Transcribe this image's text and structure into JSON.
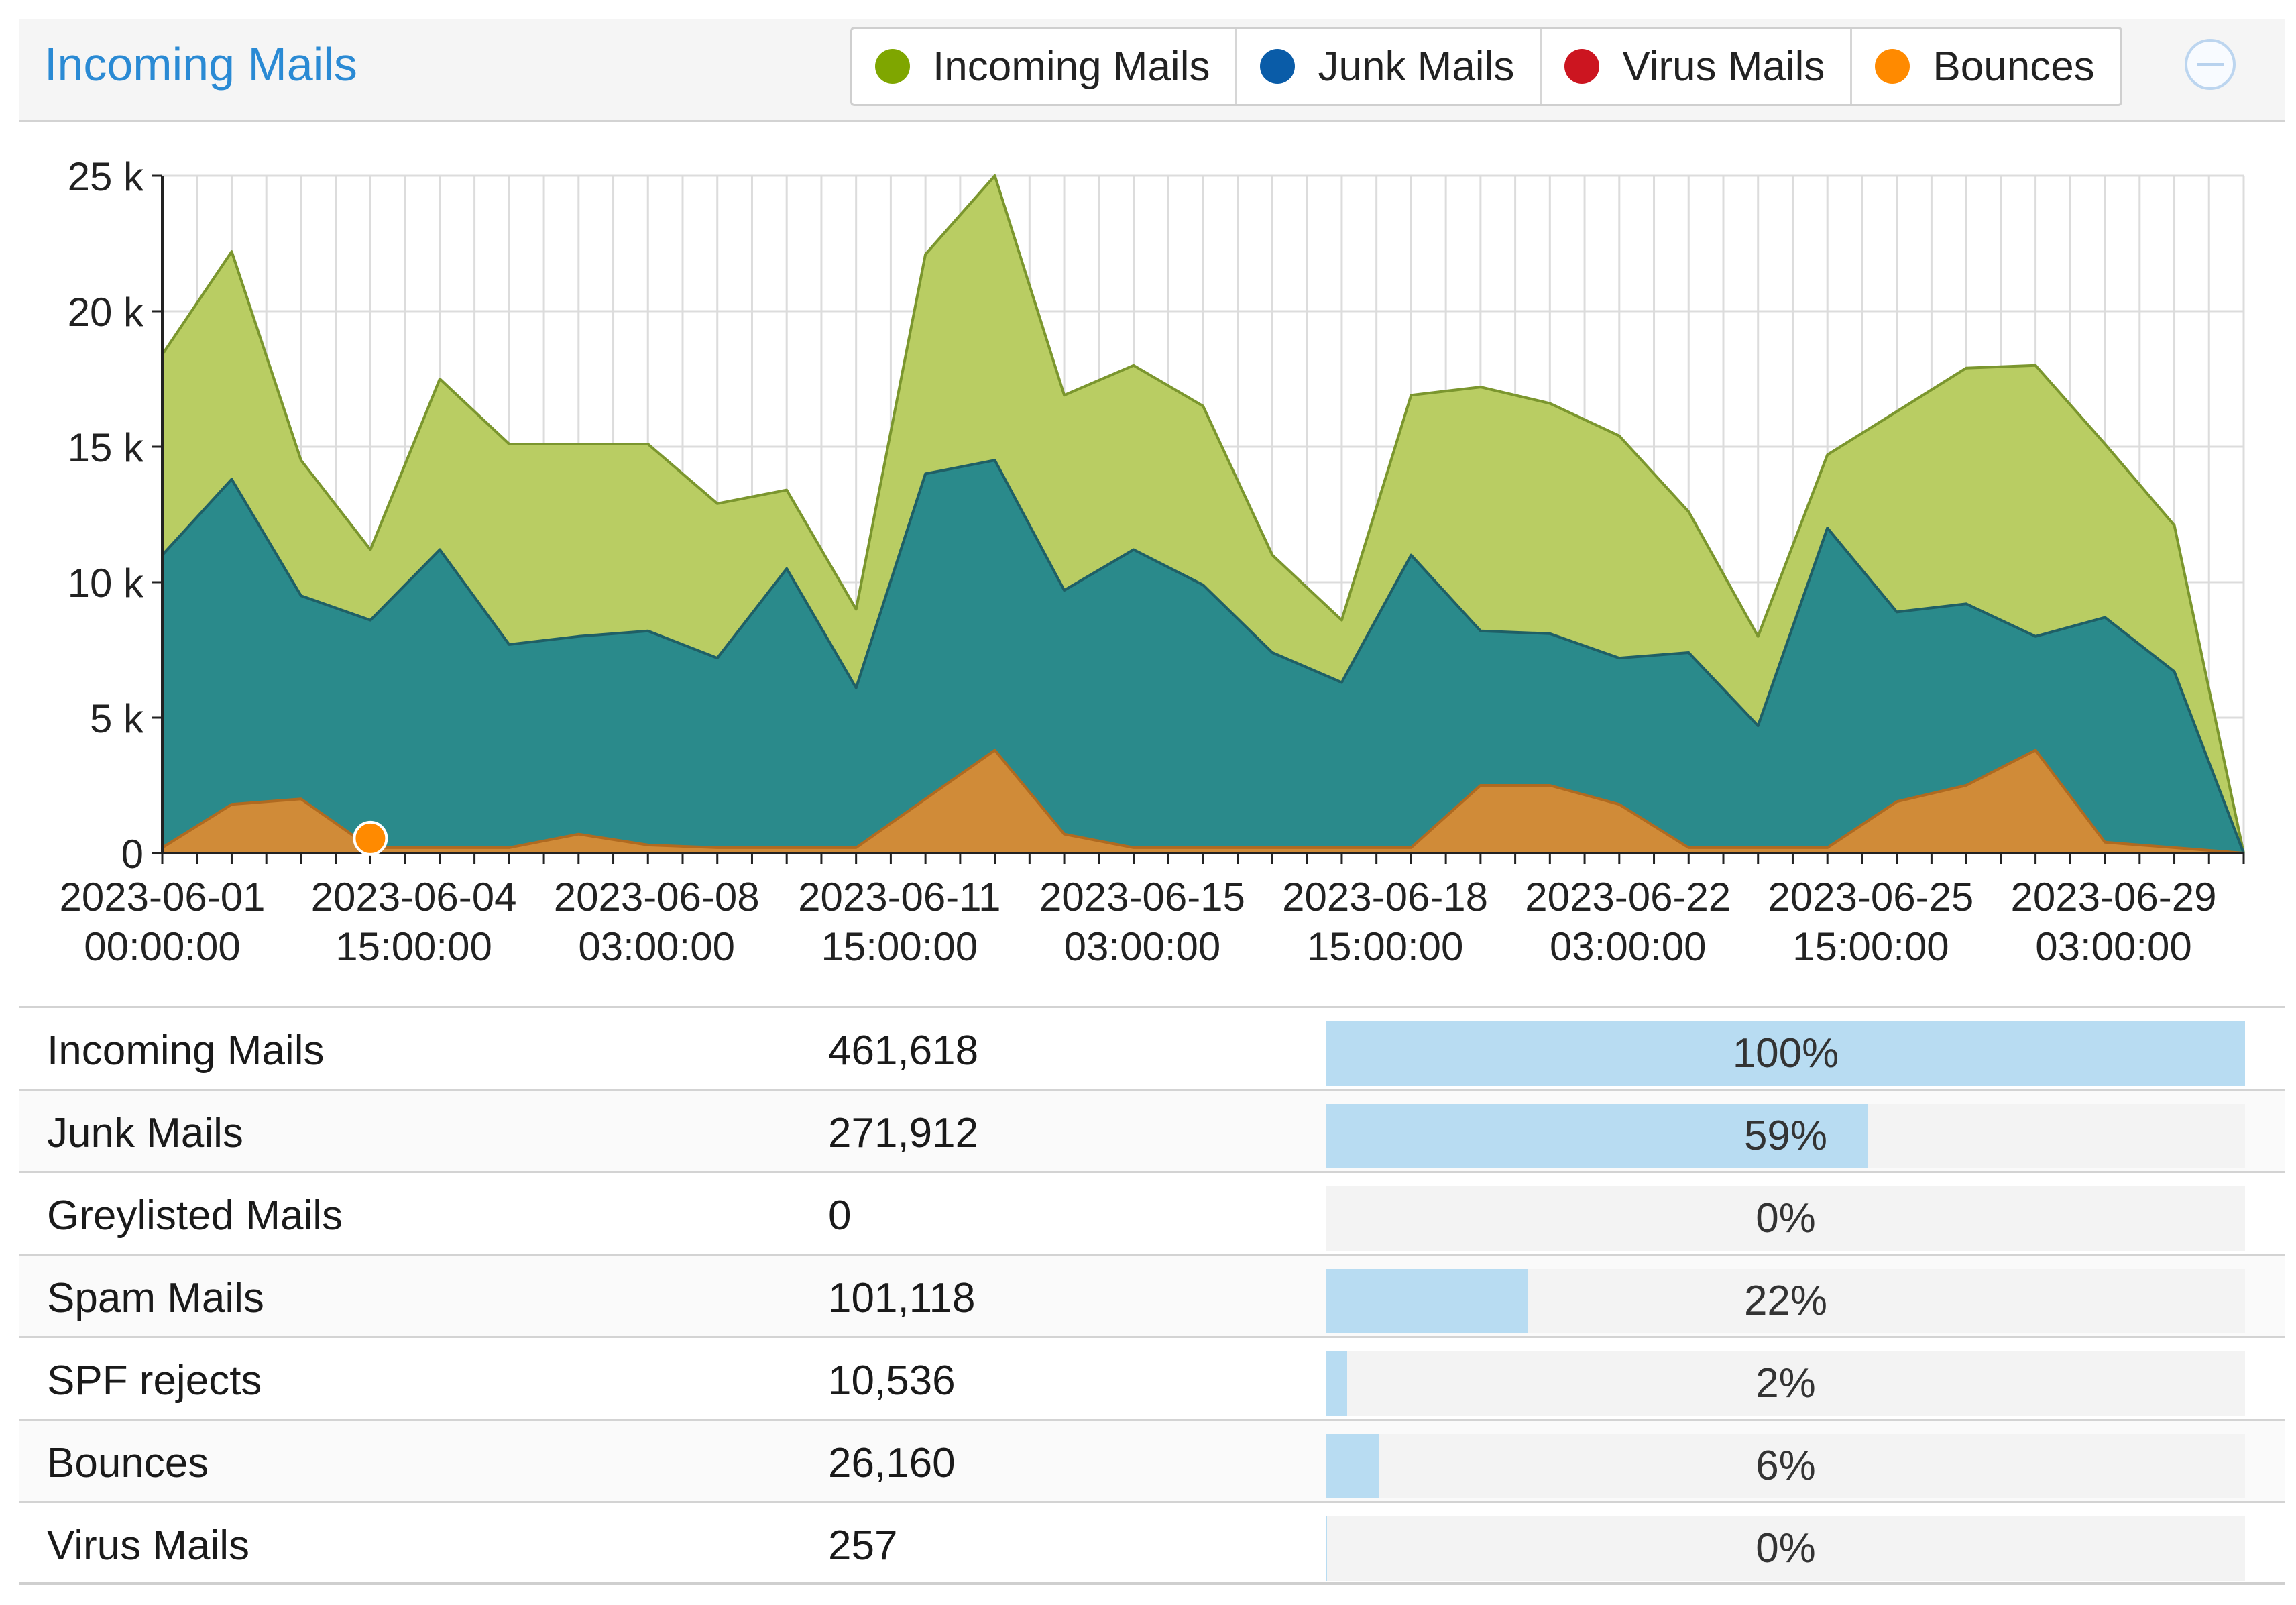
{
  "panel": {
    "title": "Incoming Mails"
  },
  "legend": [
    {
      "label": "Incoming Mails",
      "color": "#7fa600"
    },
    {
      "label": "Junk Mails",
      "color": "#0a5ca8"
    },
    {
      "label": "Virus Mails",
      "color": "#cc1520"
    },
    {
      "label": "Bounces",
      "color": "#ff8a00"
    }
  ],
  "chart_data": {
    "type": "area",
    "ylim": [
      0,
      25000
    ],
    "yticks": [
      0,
      5000,
      10000,
      15000,
      20000,
      25000
    ],
    "ytick_labels": [
      "0",
      "5 k",
      "10 k",
      "15 k",
      "20 k",
      "25 k"
    ],
    "x_count": 31,
    "xtick_labels": [
      {
        "index": 0,
        "date": "2023-06-01",
        "time": "00:00:00"
      },
      {
        "index": 3.625,
        "date": "2023-06-04",
        "time": "15:00:00"
      },
      {
        "index": 7.125,
        "date": "2023-06-08",
        "time": "03:00:00"
      },
      {
        "index": 10.625,
        "date": "2023-06-11",
        "time": "15:00:00"
      },
      {
        "index": 14.125,
        "date": "2023-06-15",
        "time": "03:00:00"
      },
      {
        "index": 17.625,
        "date": "2023-06-18",
        "time": "15:00:00"
      },
      {
        "index": 21.125,
        "date": "2023-06-22",
        "time": "03:00:00"
      },
      {
        "index": 24.625,
        "date": "2023-06-25",
        "time": "15:00:00"
      },
      {
        "index": 28.125,
        "date": "2023-06-29",
        "time": "03:00:00"
      }
    ],
    "series": [
      {
        "name": "Incoming Mails",
        "color": "#b9cd63",
        "stroke": "#7b962e",
        "values": [
          18400,
          22200,
          14500,
          11200,
          17500,
          15100,
          15100,
          15100,
          12900,
          13400,
          9000,
          22100,
          25000,
          16900,
          18000,
          16500,
          11000,
          8600,
          16900,
          17200,
          16600,
          15400,
          12600,
          8000,
          14700,
          16300,
          17900,
          18000,
          15100,
          12100,
          0
        ]
      },
      {
        "name": "Junk Mails",
        "color": "#2a8a8b",
        "stroke": "#1f5f66",
        "values": [
          11000,
          13800,
          9500,
          8600,
          11200,
          7700,
          8000,
          8200,
          7200,
          10500,
          6100,
          14000,
          14500,
          9700,
          11200,
          9900,
          7400,
          6300,
          11000,
          8200,
          8100,
          7200,
          7400,
          4700,
          12000,
          8900,
          9200,
          8000,
          8700,
          6700,
          0
        ]
      },
      {
        "name": "Bounces",
        "color": "#d08b38",
        "stroke": "#b06a20",
        "values": [
          200,
          1800,
          2000,
          200,
          200,
          200,
          700,
          300,
          200,
          200,
          200,
          2000,
          3800,
          700,
          200,
          200,
          200,
          200,
          200,
          2500,
          2500,
          1800,
          200,
          200,
          200,
          1900,
          2500,
          3800,
          400,
          200,
          0
        ]
      }
    ],
    "marker": {
      "series": "Bounces",
      "index": 3,
      "color": "#ff8a00"
    }
  },
  "table": {
    "rows": [
      {
        "label": "Incoming Mails",
        "count": "461,618",
        "percent": "100%",
        "ratio": 1.0
      },
      {
        "label": "Junk Mails",
        "count": "271,912",
        "percent": "59%",
        "ratio": 0.59
      },
      {
        "label": "Greylisted Mails",
        "count": "0",
        "percent": "0%",
        "ratio": 0
      },
      {
        "label": "Spam Mails",
        "count": "101,118",
        "percent": "22%",
        "ratio": 0.219
      },
      {
        "label": "SPF rejects",
        "count": "10,536",
        "percent": "2%",
        "ratio": 0.0228
      },
      {
        "label": "Bounces",
        "count": "26,160",
        "percent": "6%",
        "ratio": 0.0567
      },
      {
        "label": "Virus Mails",
        "count": "257",
        "percent": "0%",
        "ratio": 0.0006
      }
    ]
  }
}
